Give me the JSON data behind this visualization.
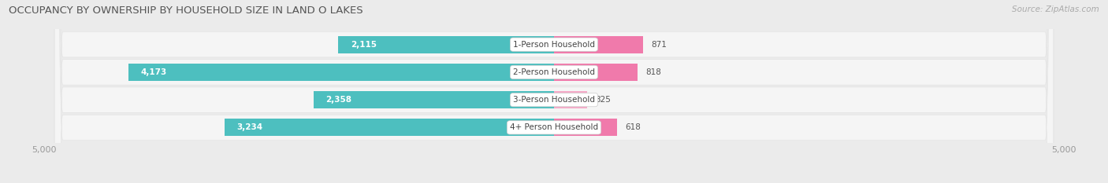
{
  "title": "OCCUPANCY BY OWNERSHIP BY HOUSEHOLD SIZE IN LAND O LAKES",
  "source": "Source: ZipAtlas.com",
  "categories": [
    "1-Person Household",
    "2-Person Household",
    "3-Person Household",
    "4+ Person Household"
  ],
  "owner_values": [
    2115,
    4173,
    2358,
    3234
  ],
  "renter_values": [
    871,
    818,
    325,
    618
  ],
  "max_scale": 5000,
  "owner_color": "#4dbfbf",
  "renter_color": "#f07aab",
  "renter_color_light": "#f5aac8",
  "bg_color": "#ebebeb",
  "row_bg_color": "#f5f5f5",
  "title_color": "#555555",
  "label_color_dark": "#555555",
  "label_color_white": "#ffffff",
  "source_color": "#aaaaaa",
  "tick_color": "#999999",
  "title_fontsize": 9.5,
  "label_fontsize": 7.5,
  "tick_fontsize": 8,
  "legend_fontsize": 8,
  "source_fontsize": 7.5
}
